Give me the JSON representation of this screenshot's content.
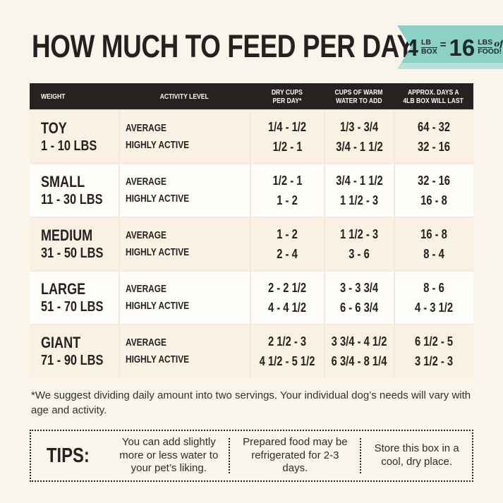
{
  "colors": {
    "page_bg": "#faf5eb",
    "badge_teal": "#8bd1c5",
    "table_header_bg": "#272220",
    "tinted_row_bg": "#fbf0e4",
    "text_dark": "#262120"
  },
  "header": {
    "title": "HOW MUCH TO FEED PER DAY",
    "badge": {
      "lead_value": "4",
      "lead_unit_top": "LB",
      "lead_unit_bottom": "BOX",
      "equals": "=",
      "result_value": "16",
      "result_unit_top": "LBS",
      "result_of": "of",
      "result_unit_bottom": "FOOD!"
    }
  },
  "table": {
    "columns": {
      "weight": {
        "line1": "WEIGHT"
      },
      "activity": {
        "line1": "ACTIVITY LEVEL"
      },
      "dry": {
        "line1": "DRY CUPS",
        "line2": "PER DAY*"
      },
      "water": {
        "line1": "CUPS OF WARM",
        "line2": "WATER TO ADD"
      },
      "days": {
        "line1": "APPROX. DAYS A",
        "line2": "4LB BOX WILL LAST"
      }
    },
    "activity_labels": {
      "average": "AVERAGE",
      "active": "HIGHLY ACTIVE"
    },
    "rows": [
      {
        "size": "TOY",
        "range": "1 - 10 LBS",
        "average": {
          "dry": "1/4 - 1/2",
          "water": "1/3 - 3/4",
          "days": "64 - 32"
        },
        "active": {
          "dry": "1/2 - 1",
          "water": "3/4 - 1 1/2",
          "days": "32 - 16"
        }
      },
      {
        "size": "SMALL",
        "range": "11 - 30 LBS",
        "average": {
          "dry": "1/2 - 1",
          "water": "3/4 - 1 1/2",
          "days": "32 - 16"
        },
        "active": {
          "dry": "1 - 2",
          "water": "1 1/2 - 3",
          "days": "16 - 8"
        }
      },
      {
        "size": "MEDIUM",
        "range": "31 - 50 LBS",
        "average": {
          "dry": "1 - 2",
          "water": "1 1/2 - 3",
          "days": "16 - 8"
        },
        "active": {
          "dry": "2 - 4",
          "water": "3 - 6",
          "days": "8 - 4"
        }
      },
      {
        "size": "LARGE",
        "range": "51 - 70 LBS",
        "average": {
          "dry": "2 - 2 1/2",
          "water": "3 - 3 3/4",
          "days": "8 - 6"
        },
        "active": {
          "dry": "4 - 4 1/2",
          "water": "6 - 6 3/4",
          "days": "4 - 3 1/2"
        }
      },
      {
        "size": "GIANT",
        "range": "71 - 90 LBS",
        "average": {
          "dry": "2 1/2 - 3",
          "water": "3 3/4 - 4 1/2",
          "days": "6 1/2 - 5"
        },
        "active": {
          "dry": "4 1/2 - 5 1/2",
          "water": "6 3/4 - 8 1/4",
          "days": "3 1/2 - 3"
        }
      }
    ]
  },
  "footnote": "*We suggest dividing daily amount into two servings. Your individual dog’s needs will vary with age and activity.",
  "tips": {
    "label": "TIPS:",
    "items": [
      "You can add slightly more or less water to your pet’s liking.",
      "Prepared food may be refrigerated for 2-3 days.",
      "Store this box in a cool, dry place."
    ]
  }
}
